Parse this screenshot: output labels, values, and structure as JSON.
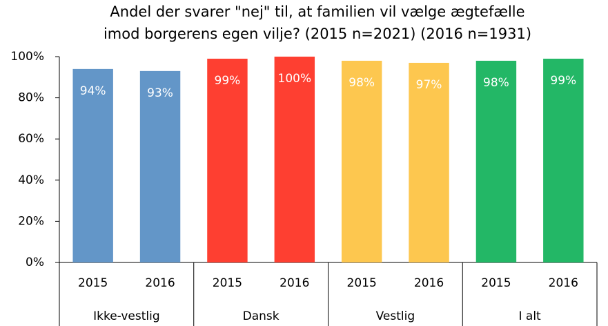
{
  "chart_data": {
    "type": "bar",
    "title": [
      "Andel der svarer \"nej\" til, at familien vil vælge ægtefælle",
      "imod borgerens egen vilje? (2015 n=2021) (2016 n=1931)"
    ],
    "categories": [
      "2015",
      "2016",
      "2015",
      "2016",
      "2015",
      "2016",
      "2015",
      "2016"
    ],
    "groups": [
      "Ikke-vestlig",
      "Dansk",
      "Vestlig",
      "I alt"
    ],
    "values": [
      94,
      93,
      99,
      100,
      98,
      97,
      98,
      99
    ],
    "value_labels": [
      "94%",
      "93%",
      "99%",
      "100%",
      "98%",
      "97%",
      "98%",
      "99%"
    ],
    "colors": [
      "#6396c8",
      "#6396c8",
      "#fe3f31",
      "#fe3f31",
      "#fdc74f",
      "#fdc74f",
      "#23b766",
      "#23b766"
    ],
    "ylim": [
      0,
      100
    ],
    "yticks": [
      {
        "value": 0,
        "label": "0%"
      },
      {
        "value": 20,
        "label": "20%"
      },
      {
        "value": 40,
        "label": "40%"
      },
      {
        "value": 60,
        "label": "60%"
      },
      {
        "value": 80,
        "label": "80%"
      },
      {
        "value": 100,
        "label": "100%"
      }
    ],
    "grid": false
  }
}
